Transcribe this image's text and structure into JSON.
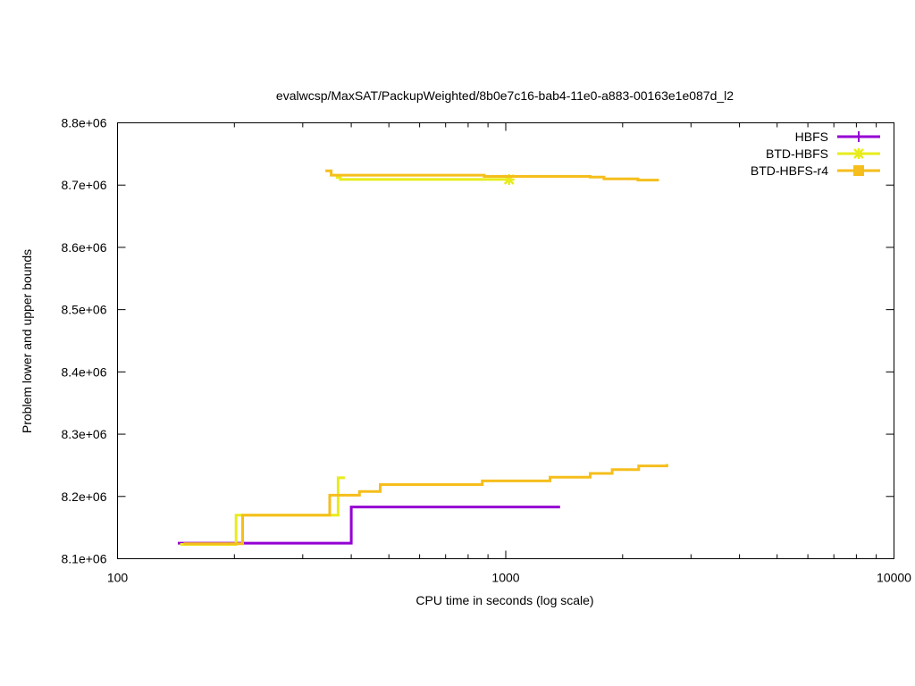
{
  "chart_data": {
    "type": "line",
    "title": "evalwcsp/MaxSAT/PackupWeighted/8b0e7c16-bab4-11e0-a883-00163e1e087d_l2",
    "xlabel": "CPU time in seconds (log scale)",
    "ylabel": "Problem lower and upper bounds",
    "xscale": "log",
    "xlim": [
      100,
      10000
    ],
    "ylim": [
      8100000,
      8800000
    ],
    "xticks": [
      {
        "v": 100,
        "label": "100"
      },
      {
        "v": 1000,
        "label": "1000"
      },
      {
        "v": 10000,
        "label": "10000"
      }
    ],
    "yticks": [
      {
        "v": 8100000,
        "label": "8.1e+06"
      },
      {
        "v": 8200000,
        "label": "8.2e+06"
      },
      {
        "v": 8300000,
        "label": "8.3e+06"
      },
      {
        "v": 8400000,
        "label": "8.4e+06"
      },
      {
        "v": 8500000,
        "label": "8.5e+06"
      },
      {
        "v": 8600000,
        "label": "8.6e+06"
      },
      {
        "v": 8700000,
        "label": "8.7e+06"
      },
      {
        "v": 8800000,
        "label": "8.8e+06"
      }
    ],
    "grid": false,
    "legend_position": "top-right",
    "series": [
      {
        "name": "HBFS",
        "color": "#9400d3",
        "marker": "plus",
        "lines": [
          [
            [
              143,
              8125000
            ],
            [
              400,
              8125000
            ],
            [
              400,
              8183000
            ],
            [
              1380,
              8183000
            ]
          ]
        ],
        "marker_points": []
      },
      {
        "name": "BTD-HBFS",
        "color": "#e8ec1a",
        "marker": "star",
        "lines": [
          [
            [
              145,
              8123000
            ],
            [
              202,
              8123000
            ],
            [
              202,
              8170000
            ],
            [
              370,
              8170000
            ],
            [
              370,
              8230000
            ],
            [
              385,
              8230000
            ]
          ],
          [
            [
              365,
              8712000
            ],
            [
              375,
              8712000
            ],
            [
              375,
              8709000
            ],
            [
              1020,
              8709000
            ]
          ]
        ],
        "marker_points": [
          [
            1020,
            8709000
          ]
        ]
      },
      {
        "name": "BTD-HBFS-r4",
        "color": "#f5be1c",
        "marker": "square",
        "lines": [
          [
            [
              148,
              8124000
            ],
            [
              210,
              8124000
            ],
            [
              210,
              8170000
            ],
            [
              352,
              8170000
            ],
            [
              352,
              8202000
            ],
            [
              420,
              8202000
            ],
            [
              420,
              8208000
            ],
            [
              475,
              8208000
            ],
            [
              475,
              8219000
            ],
            [
              870,
              8219000
            ],
            [
              870,
              8225000
            ],
            [
              1300,
              8225000
            ],
            [
              1300,
              8231000
            ],
            [
              1650,
              8231000
            ],
            [
              1650,
              8237000
            ],
            [
              1880,
              8237000
            ],
            [
              1880,
              8243000
            ],
            [
              2200,
              8243000
            ],
            [
              2200,
              8249000
            ],
            [
              2600,
              8249000
            ],
            [
              2600,
              8252000
            ]
          ],
          [
            [
              343,
              8723000
            ],
            [
              355,
              8723000
            ],
            [
              355,
              8716000
            ],
            [
              880,
              8716000
            ],
            [
              880,
              8714000
            ],
            [
              1650,
              8714000
            ],
            [
              1650,
              8713000
            ],
            [
              1790,
              8713000
            ],
            [
              1790,
              8710000
            ],
            [
              2190,
              8710000
            ],
            [
              2190,
              8708000
            ],
            [
              2480,
              8708000
            ]
          ]
        ],
        "marker_points": []
      }
    ]
  }
}
